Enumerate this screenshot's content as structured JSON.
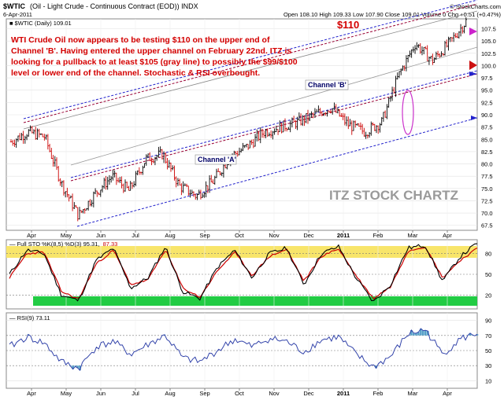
{
  "header": {
    "symbol": "$WTIC",
    "description": "(Oil - Light Crude - Continuous Contract (EOD))  INDX",
    "date": "6-Apr-2011",
    "ohlc": "Open 108.10  High 109.33  Low 107.90  Close 109.01  Volume 0  Chg +0.51 (+0.47%)",
    "watermark": "© StockCharts.com"
  },
  "price_panel": {
    "legend": "■ $WTIC (Daily) 109.01",
    "annotation_lines": [
      "WTI Crude Oil now appears to be testing $110 on the upper end of",
      "Channel 'B'. Having entered the upper channel on February 22nd. ITZ is",
      "looking for a pullback to at least $105 (gray line) to possibly the $99/$100",
      "level or lower end of the channel. Stochastic & RSI overbought."
    ],
    "price_label": "$110",
    "channel_a_label": "Channel 'A'",
    "channel_b_label": "Channel 'B'",
    "brand": "ITZ STOCK CHARTZ",
    "y_ticks": [
      "107.5",
      "105.0",
      "102.5",
      "100.0",
      "97.5",
      "95.0",
      "92.5",
      "90.0",
      "87.5",
      "85.0",
      "82.5",
      "80.0",
      "77.5",
      "75.0",
      "72.5",
      "70.0",
      "67.5"
    ]
  },
  "sto_panel": {
    "legend_prefix": "— Full STO %K(8,5) %D(3) 95.31,",
    "legend_value": "87.33",
    "y_ticks": [
      "80",
      "50",
      "20"
    ]
  },
  "rsi_panel": {
    "legend": "— RSI(9) 73.11",
    "y_ticks": [
      "90",
      "70",
      "50",
      "30",
      "10"
    ]
  },
  "x_axis": [
    "Apr",
    "May",
    "Jun",
    "Jul",
    "Aug",
    "Sep",
    "Oct",
    "Nov",
    "Dec",
    "2011",
    "Feb",
    "Mar",
    "Apr"
  ],
  "colors": {
    "price_bars": "#000000",
    "channel_a": "#2222cc",
    "channel_b": "#990033",
    "mid_line": "#999999",
    "sto_k": "#000000",
    "sto_d": "#cc0000",
    "overbought": "#f8e56a",
    "oversold": "#22cc44",
    "rsi_line": "#3344aa",
    "rsi_fill": "#55a0c8",
    "annotation": "#d40000"
  },
  "chart_data": [
    {
      "type": "line",
      "title": "$WTIC (Daily) 109.01",
      "x": [
        "Apr",
        "Apr",
        "May",
        "May",
        "Jun",
        "Jun",
        "Jul",
        "Jul",
        "Aug",
        "Aug",
        "Sep",
        "Sep",
        "Oct",
        "Oct",
        "Nov",
        "Nov",
        "Dec",
        "Dec",
        "2011",
        "2011",
        "Feb",
        "Feb",
        "Feb",
        "Mar",
        "Mar",
        "Mar",
        "Apr",
        "Apr"
      ],
      "series": [
        {
          "name": "$WTIC",
          "values": [
            84.5,
            86.5,
            85.5,
            76.0,
            69.5,
            74.0,
            77.5,
            74.5,
            81.0,
            82.0,
            75.5,
            73.5,
            76.5,
            81.5,
            83.5,
            86.5,
            87.5,
            88.5,
            90.0,
            91.5,
            88.0,
            86.5,
            88.5,
            98.0,
            104.5,
            101.0,
            104.5,
            109.01
          ]
        }
      ],
      "ylim": [
        66.5,
        109.5
      ]
    },
    {
      "type": "line",
      "title": "Full STO %K(8,5) %D(3)",
      "series": [
        {
          "name": "%K",
          "values": [
            50,
            85,
            80,
            20,
            12,
            70,
            88,
            30,
            45,
            90,
            25,
            15,
            60,
            85,
            45,
            80,
            88,
            35,
            80,
            90,
            45,
            10,
            35,
            88,
            92,
            40,
            75,
            95.31
          ]
        },
        {
          "name": "%D",
          "values": [
            45,
            80,
            82,
            25,
            14,
            65,
            85,
            35,
            42,
            86,
            30,
            17,
            55,
            82,
            48,
            76,
            86,
            40,
            76,
            87,
            48,
            15,
            32,
            84,
            90,
            45,
            70,
            87.33
          ]
        }
      ],
      "ylim": [
        0,
        100
      ]
    },
    {
      "type": "line",
      "title": "RSI(9)",
      "series": [
        {
          "name": "RSI(9)",
          "values": [
            55,
            68,
            60,
            35,
            26,
            55,
            62,
            45,
            58,
            70,
            40,
            35,
            50,
            65,
            55,
            66,
            62,
            48,
            64,
            68,
            45,
            28,
            42,
            72,
            78,
            45,
            65,
            73.11
          ]
        }
      ],
      "ylim": [
        0,
        100
      ]
    }
  ]
}
